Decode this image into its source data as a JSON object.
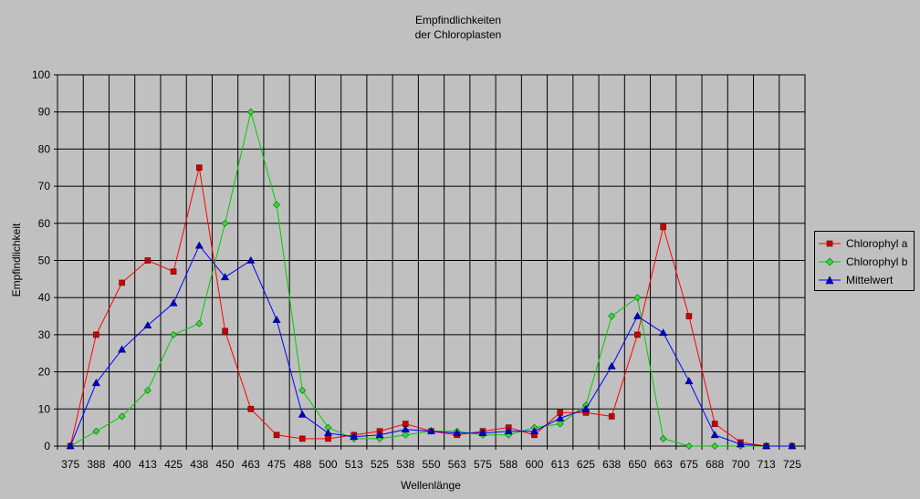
{
  "chart_data": {
    "type": "line",
    "title": "Empfindlichkeiten",
    "subtitle": "der Chloroplasten",
    "xlabel": "Wellenlänge",
    "ylabel": "Empfindlichkeit",
    "ylim": [
      0,
      100
    ],
    "yticks": [
      0,
      10,
      20,
      30,
      40,
      50,
      60,
      70,
      80,
      90,
      100
    ],
    "grid": true,
    "legend_position": "right",
    "categories": [
      "375",
      "388",
      "400",
      "413",
      "425",
      "438",
      "450",
      "463",
      "475",
      "488",
      "500",
      "513",
      "525",
      "538",
      "550",
      "563",
      "575",
      "588",
      "600",
      "613",
      "625",
      "638",
      "650",
      "663",
      "675",
      "688",
      "700",
      "713",
      "725"
    ],
    "series": [
      {
        "name": "Chlorophyl a",
        "color": "#ff0000",
        "marker": "square",
        "values": [
          0,
          30,
          44,
          50,
          47,
          75,
          31,
          10,
          3,
          2,
          2,
          3,
          4,
          6,
          4,
          3,
          4,
          5,
          3,
          9,
          9,
          8,
          30,
          59,
          35,
          6,
          1,
          0,
          0
        ]
      },
      {
        "name": "Chlorophyl b",
        "color": "#00cc00",
        "marker": "diamond",
        "values": [
          0,
          4,
          8,
          15,
          30,
          33,
          60,
          90,
          65,
          15,
          5,
          2,
          2,
          3,
          4,
          4,
          3,
          3,
          5,
          6,
          11,
          35,
          40,
          2,
          0,
          0,
          0,
          0,
          0
        ]
      },
      {
        "name": "Mittelwert",
        "color": "#0000ff",
        "marker": "triangle",
        "values": [
          0,
          17,
          26,
          32.5,
          38.5,
          54,
          45.5,
          50,
          34,
          8.5,
          3.5,
          2.5,
          3,
          4.5,
          4,
          3.5,
          3.5,
          4,
          4,
          7.5,
          10,
          21.5,
          35,
          30.5,
          17.5,
          3,
          0.5,
          0,
          0
        ]
      }
    ]
  }
}
